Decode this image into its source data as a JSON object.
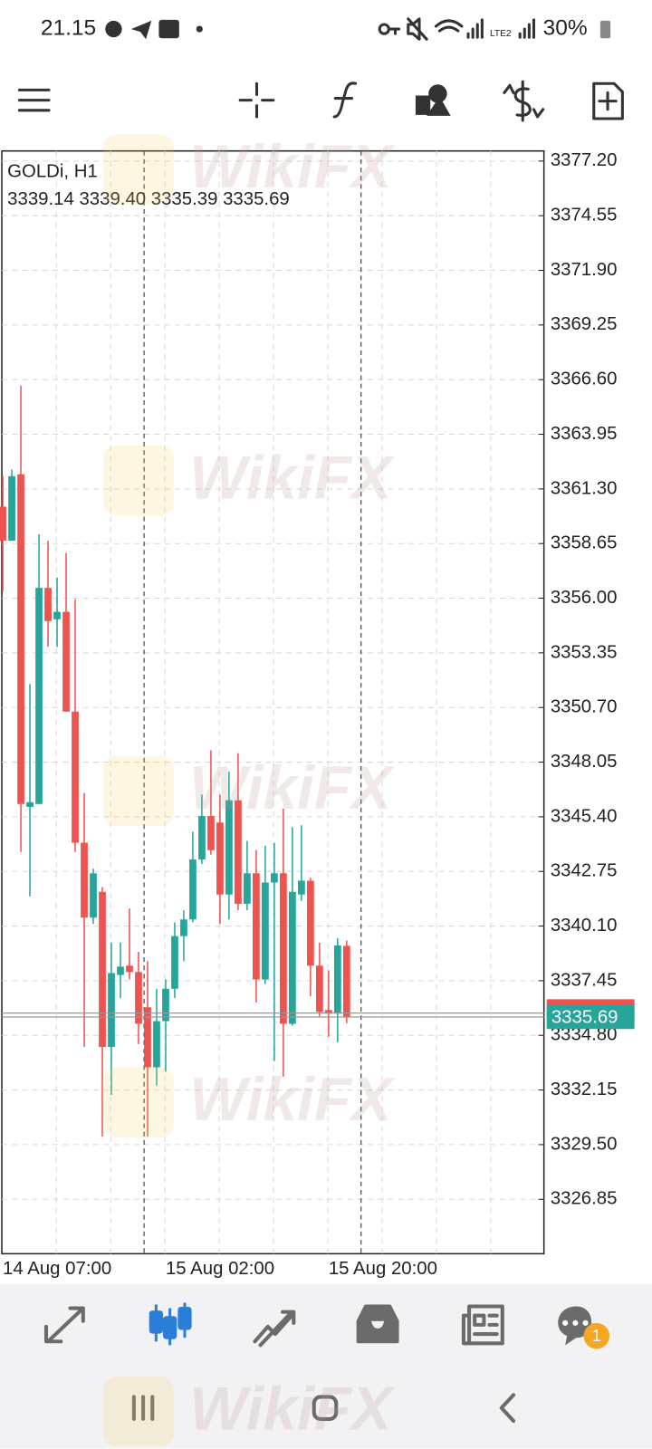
{
  "status_bar": {
    "time": "21.15",
    "network": "LTE2",
    "battery": "30%"
  },
  "chart_data": {
    "type": "candlestick",
    "symbol": "GOLDi, H1",
    "ohlc_header": "3339.14 3339.40 3335.39 3335.69",
    "categories": [
      "14 Aug 07:00",
      null,
      null,
      null,
      null,
      null,
      null,
      null,
      null,
      null,
      null,
      null,
      null,
      null,
      null,
      null,
      null,
      null,
      "15 Aug 02:00",
      null,
      null,
      null,
      null,
      null,
      null,
      null,
      null,
      null,
      null,
      null,
      null,
      null,
      null,
      null,
      null,
      null,
      "15 Aug 20:00",
      null,
      null
    ],
    "open": [
      3360.44,
      3358.79,
      3362.01,
      3345.88,
      3346.02,
      3356.5,
      3354.98,
      3355.34,
      3350.5,
      3344.14,
      3340.51,
      3341.76,
      3334.24,
      3337.73,
      3338.18,
      3337.87,
      3336.16,
      3333.25,
      3335.49,
      3337.06,
      3339.61,
      3340.42,
      3343.33,
      3345.44,
      3345.12,
      3341.63,
      3346.2,
      3341.18,
      3342.66,
      3337.51,
      3342.21,
      3342.66,
      3335.36,
      3341.63,
      3342.3,
      3338.18,
      3336.03,
      3335.85,
      3339.14
    ],
    "high": [
      3361.92,
      3362.24,
      3366.31,
      3351.84,
      3359.1,
      3358.79,
      3357.0,
      3358.2,
      3355.96,
      3346.56,
      3342.88,
      3341.99,
      3339.3,
      3339.3,
      3340.96,
      3338.85,
      3338.4,
      3337.06,
      3337.51,
      3340.28,
      3340.87,
      3344.68,
      3346.47,
      3348.62,
      3346.47,
      3347.59,
      3348.48,
      3344.23,
      3343.78,
      3344.0,
      3344.14,
      3345.8,
      3344.9,
      3344.99,
      3342.44,
      3339.3,
      3337.96,
      3339.52,
      3339.4
    ],
    "low": [
      3356.32,
      3358.79,
      3343.69,
      3341.54,
      3346.02,
      3353.64,
      3353.64,
      3350.5,
      3343.69,
      3334.24,
      3340.2,
      3329.89,
      3331.91,
      3336.61,
      3337.51,
      3334.37,
      3329.89,
      3332.36,
      3333.03,
      3336.61,
      3338.4,
      3340.28,
      3343.11,
      3343.56,
      3340.2,
      3340.42,
      3340.87,
      3340.87,
      3336.39,
      3337.28,
      3333.56,
      3332.8,
      3335.27,
      3341.32,
      3336.7,
      3335.72,
      3334.73,
      3334.46,
      3335.39
    ],
    "close": [
      3358.79,
      3361.92,
      3346.02,
      3346.11,
      3356.5,
      3354.89,
      3355.34,
      3350.5,
      3344.14,
      3340.51,
      3342.66,
      3334.24,
      3337.82,
      3338.13,
      3337.87,
      3335.36,
      3333.25,
      3335.49,
      3337.06,
      3339.61,
      3340.42,
      3343.33,
      3345.44,
      3343.78,
      3341.63,
      3346.2,
      3341.18,
      3342.66,
      3337.51,
      3342.21,
      3342.66,
      3335.36,
      3341.76,
      3342.3,
      3338.18,
      3335.94,
      3335.85,
      3339.16,
      3335.69
    ],
    "up_color": "#26a69a",
    "down_color": "#ef5350",
    "ylim": [
      3324.21,
      3377.69
    ],
    "yticks": [
      {
        "value": 3377.2,
        "label": "3377.20"
      },
      3374.55,
      {
        "value": 3371.9,
        "label": "3371.90"
      },
      3369.25,
      {
        "value": 3366.6,
        "label": "3366.60"
      },
      3363.95,
      {
        "value": 3361.3,
        "label": "3361.30"
      },
      3358.65,
      {
        "value": 3356,
        "label": "3356.00"
      },
      3353.35,
      {
        "value": 3350.7,
        "label": "3350.70"
      },
      3348.05,
      {
        "value": 3345.4,
        "label": "3345.40"
      },
      3342.75,
      {
        "value": 3340.1,
        "label": "3340.10"
      },
      3337.45,
      {
        "value": 3334.8,
        "label": "3334.80"
      },
      3332.15,
      {
        "value": 3329.5,
        "label": "3329.50"
      },
      3326.85
    ],
    "grid": true,
    "ask": 3335.88,
    "bid": {
      "value": 3335.69,
      "label": "3335.69"
    }
  },
  "watermark": "WikiFX",
  "nav": {
    "badge": 1
  }
}
